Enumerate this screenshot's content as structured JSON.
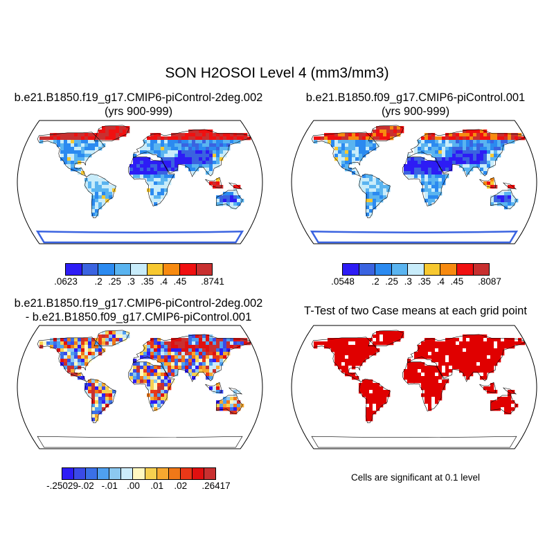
{
  "main_title": "SON H2OSOI Level 4 (mm3/mm3)",
  "panels": {
    "top_left": {
      "title_line1": "b.e21.B1850.f19_g17.CMIP6-piControl-2deg.002",
      "title_line2": "(yrs 900-999)"
    },
    "top_right": {
      "title_line1": "b.e21.B1850.f09_g17.CMIP6-piControl.001",
      "title_line2": "(yrs 900-999)"
    },
    "bottom_left": {
      "title_line1": "b.e21.B1850.f19_g17.CMIP6-piControl-2deg.002",
      "title_line2": "- b.e21.B1850.f09_g17.CMIP6-piControl.001"
    },
    "bottom_right": {
      "title_line1": "T-Test of two Case means at each grid point",
      "note": "Cells are significant at 0.1 level"
    }
  },
  "colorbars": {
    "case1": {
      "colors": [
        "#2d1cf5",
        "#3a63e0",
        "#2b8af0",
        "#5ab4f0",
        "#c8ecfa",
        "#f7c830",
        "#f78a10",
        "#f01010",
        "#c83030"
      ],
      "labels": [
        ".0623",
        ".2",
        ".25",
        ".3",
        ".35",
        ".4",
        ".45",
        ".8741"
      ],
      "label_boundaries": [
        0,
        2,
        3,
        4,
        5,
        6,
        7,
        9
      ]
    },
    "case2": {
      "colors": [
        "#2d1cf5",
        "#3a63e0",
        "#2b8af0",
        "#5ab4f0",
        "#c8ecfa",
        "#f7c830",
        "#f78a10",
        "#f01010",
        "#c83030"
      ],
      "labels": [
        ".0548",
        ".2",
        ".25",
        ".3",
        ".35",
        ".4",
        ".45",
        ".8087"
      ],
      "label_boundaries": [
        0,
        2,
        3,
        4,
        5,
        6,
        7,
        9
      ]
    },
    "difference": {
      "colors": [
        "#2d1cf5",
        "#3a4ae8",
        "#3a70e8",
        "#4fa0f0",
        "#8cc8f0",
        "#ccecfa",
        "#fff8c0",
        "#f7d050",
        "#f7a830",
        "#f07818",
        "#e83818",
        "#e01010",
        "#c83030"
      ],
      "labels": [
        "-.25029",
        "-.02",
        "-.01",
        ".00",
        ".01",
        ".02",
        ".26417"
      ],
      "label_boundaries": [
        0,
        2,
        4,
        6,
        8,
        10,
        13
      ]
    }
  },
  "map_colors": {
    "ocean": "#ffffff",
    "coast": "#000000",
    "significant": "#e00000"
  }
}
